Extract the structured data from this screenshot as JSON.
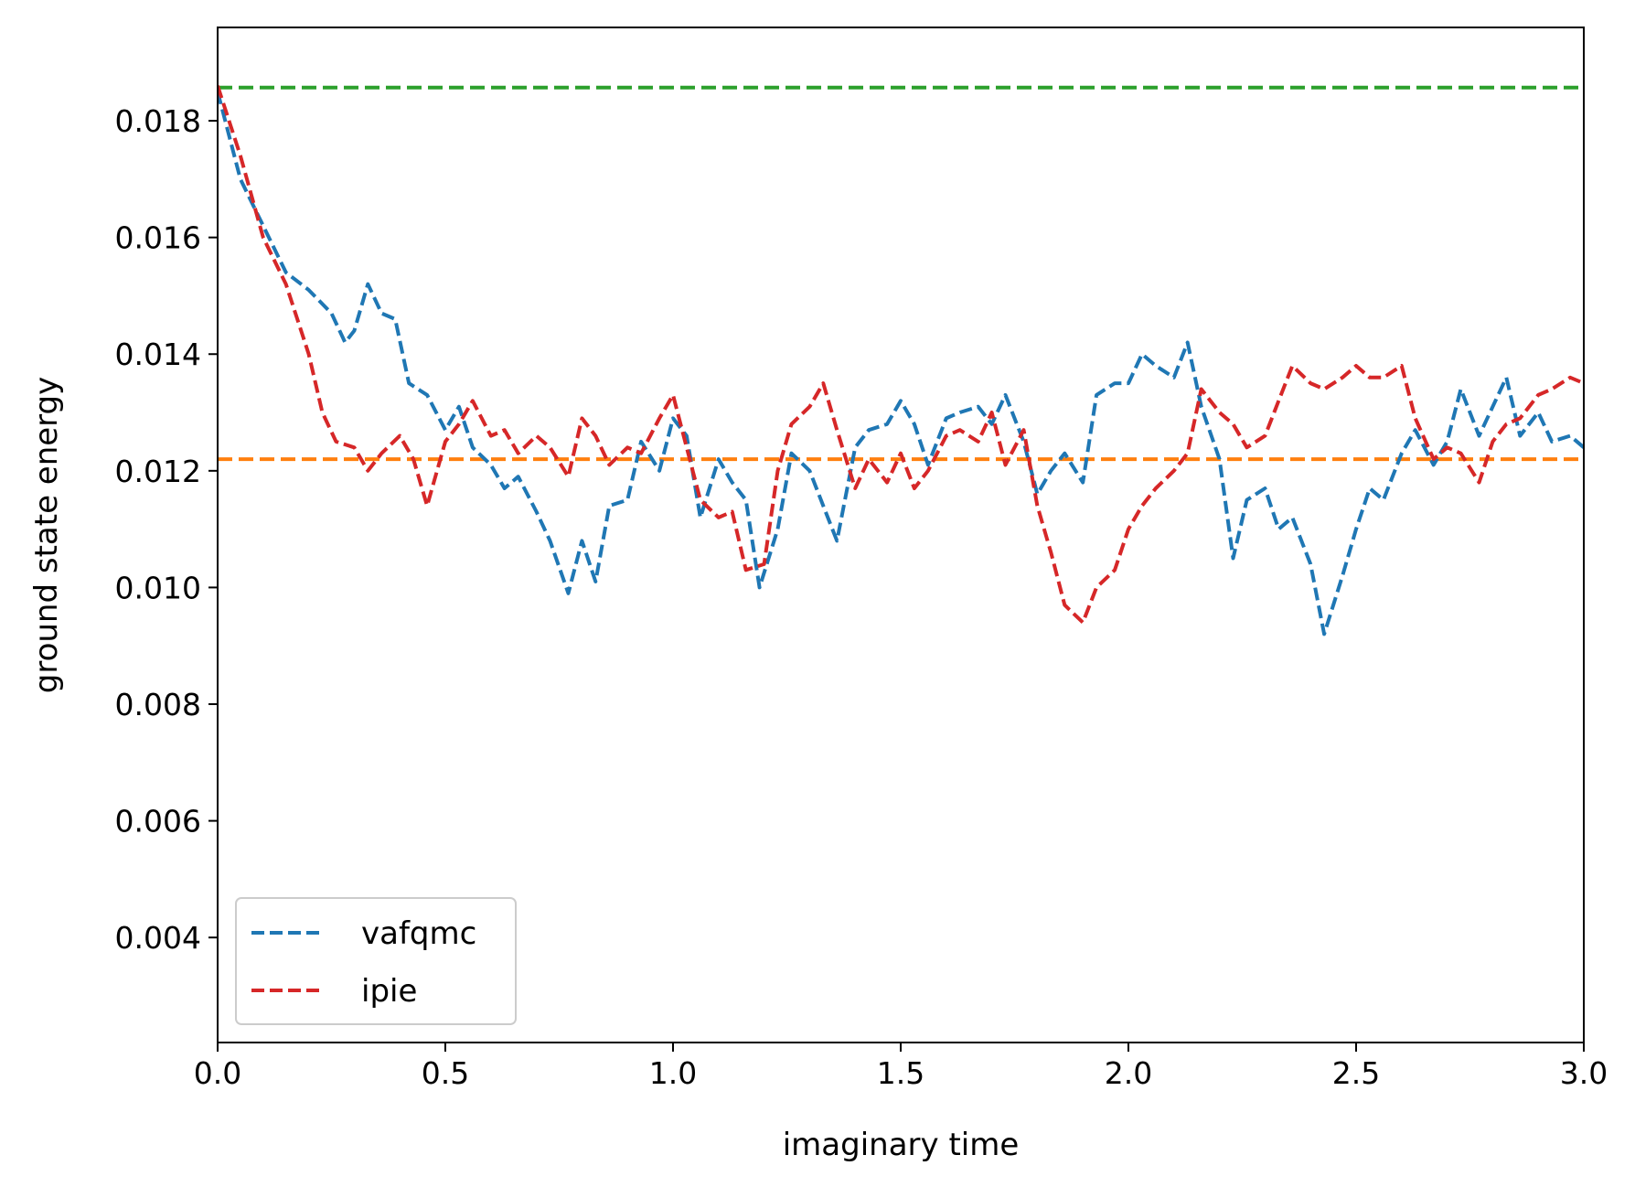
{
  "chart_data": {
    "type": "line",
    "title": "",
    "xlabel": "imaginary time",
    "ylabel": "ground state energy",
    "xlim": [
      0,
      3
    ],
    "ylim": [
      0.0022,
      0.0196
    ],
    "xticks": [
      0,
      0.5,
      1,
      1.5,
      2,
      2.5,
      3
    ],
    "xtick_labels": [
      "0.0",
      "0.5",
      "1.0",
      "1.5",
      "2.0",
      "2.5",
      "3.0"
    ],
    "yticks": [
      0.004,
      0.006,
      0.008,
      0.01,
      0.012,
      0.014,
      0.016,
      0.018
    ],
    "ytick_labels": [
      "0.004",
      "0.006",
      "0.008",
      "0.010",
      "0.012",
      "0.014",
      "0.016",
      "0.018"
    ],
    "grid": false,
    "legend_position": "lower-left",
    "reference_lines": [
      {
        "y": 0.01857,
        "color": "#2ca02c",
        "style": "dashed"
      },
      {
        "y": 0.0122,
        "color": "#ff7f0e",
        "style": "dashed"
      }
    ],
    "series": [
      {
        "name": "vafqmc",
        "color": "#1f77b4",
        "style": "dashed",
        "x": [
          0,
          0.05,
          0.1,
          0.15,
          0.2,
          0.25,
          0.28,
          0.3,
          0.33,
          0.36,
          0.39,
          0.42,
          0.46,
          0.5,
          0.53,
          0.56,
          0.6,
          0.63,
          0.66,
          0.7,
          0.73,
          0.77,
          0.8,
          0.83,
          0.86,
          0.9,
          0.93,
          0.97,
          1.0,
          1.03,
          1.06,
          1.1,
          1.13,
          1.16,
          1.19,
          1.23,
          1.26,
          1.3,
          1.33,
          1.36,
          1.4,
          1.43,
          1.47,
          1.5,
          1.53,
          1.56,
          1.6,
          1.63,
          1.67,
          1.7,
          1.73,
          1.77,
          1.8,
          1.83,
          1.86,
          1.9,
          1.93,
          1.97,
          2.0,
          2.03,
          2.06,
          2.1,
          2.13,
          2.16,
          2.2,
          2.23,
          2.26,
          2.3,
          2.33,
          2.36,
          2.4,
          2.43,
          2.47,
          2.5,
          2.53,
          2.56,
          2.6,
          2.63,
          2.67,
          2.7,
          2.73,
          2.77,
          2.8,
          2.83,
          2.86,
          2.9,
          2.93,
          2.97,
          3.0
        ],
        "y": [
          0.0185,
          0.017,
          0.0162,
          0.0154,
          0.0151,
          0.0147,
          0.0142,
          0.0144,
          0.0152,
          0.0147,
          0.0146,
          0.0135,
          0.0133,
          0.0127,
          0.0131,
          0.0124,
          0.0121,
          0.0117,
          0.0119,
          0.0113,
          0.0108,
          0.0099,
          0.0108,
          0.0101,
          0.0114,
          0.0115,
          0.0125,
          0.012,
          0.0129,
          0.0126,
          0.0112,
          0.0122,
          0.0118,
          0.0115,
          0.01,
          0.011,
          0.0123,
          0.012,
          0.0114,
          0.0108,
          0.0124,
          0.0127,
          0.0128,
          0.0132,
          0.0128,
          0.0121,
          0.0129,
          0.013,
          0.0131,
          0.0128,
          0.0133,
          0.0125,
          0.0116,
          0.012,
          0.0123,
          0.0118,
          0.0133,
          0.0135,
          0.0135,
          0.014,
          0.0138,
          0.0136,
          0.0142,
          0.0131,
          0.0122,
          0.0105,
          0.0115,
          0.0117,
          0.011,
          0.0112,
          0.0104,
          0.0092,
          0.0102,
          0.011,
          0.0117,
          0.0115,
          0.0123,
          0.0127,
          0.0121,
          0.0125,
          0.0134,
          0.0126,
          0.0131,
          0.0136,
          0.0126,
          0.013,
          0.0125,
          0.0126,
          0.0124
        ]
      },
      {
        "name": "ipie",
        "color": "#d62728",
        "style": "dashed",
        "x": [
          0,
          0.05,
          0.1,
          0.15,
          0.2,
          0.23,
          0.26,
          0.3,
          0.33,
          0.36,
          0.4,
          0.43,
          0.46,
          0.5,
          0.53,
          0.56,
          0.6,
          0.63,
          0.66,
          0.7,
          0.73,
          0.77,
          0.8,
          0.83,
          0.86,
          0.9,
          0.93,
          0.97,
          1.0,
          1.03,
          1.06,
          1.1,
          1.13,
          1.16,
          1.2,
          1.23,
          1.26,
          1.3,
          1.33,
          1.36,
          1.4,
          1.43,
          1.47,
          1.5,
          1.53,
          1.56,
          1.6,
          1.63,
          1.67,
          1.7,
          1.73,
          1.77,
          1.8,
          1.83,
          1.86,
          1.9,
          1.93,
          1.97,
          2.0,
          2.03,
          2.06,
          2.1,
          2.13,
          2.16,
          2.2,
          2.23,
          2.26,
          2.3,
          2.33,
          2.36,
          2.4,
          2.43,
          2.47,
          2.5,
          2.53,
          2.56,
          2.6,
          2.63,
          2.67,
          2.7,
          2.73,
          2.77,
          2.8,
          2.83,
          2.86,
          2.9,
          2.93,
          2.97,
          3.0
        ],
        "y": [
          0.0186,
          0.0174,
          0.016,
          0.0152,
          0.014,
          0.013,
          0.0125,
          0.0124,
          0.012,
          0.0123,
          0.0126,
          0.0122,
          0.0114,
          0.0125,
          0.0128,
          0.0132,
          0.0126,
          0.0127,
          0.0123,
          0.0126,
          0.0124,
          0.0119,
          0.0129,
          0.0126,
          0.0121,
          0.0124,
          0.0123,
          0.0129,
          0.0133,
          0.0124,
          0.0115,
          0.0112,
          0.0113,
          0.0103,
          0.0104,
          0.012,
          0.0128,
          0.0131,
          0.0135,
          0.0127,
          0.0117,
          0.0122,
          0.0118,
          0.0123,
          0.0117,
          0.012,
          0.0126,
          0.0127,
          0.0125,
          0.013,
          0.0121,
          0.0127,
          0.0114,
          0.0106,
          0.0097,
          0.0094,
          0.01,
          0.0103,
          0.011,
          0.0114,
          0.0117,
          0.012,
          0.0123,
          0.0134,
          0.013,
          0.0128,
          0.0124,
          0.0126,
          0.0132,
          0.0138,
          0.0135,
          0.0134,
          0.0136,
          0.0138,
          0.0136,
          0.0136,
          0.0138,
          0.0129,
          0.0122,
          0.0124,
          0.0123,
          0.0118,
          0.0125,
          0.0128,
          0.0129,
          0.0133,
          0.0134,
          0.0136,
          0.0135
        ]
      }
    ]
  }
}
